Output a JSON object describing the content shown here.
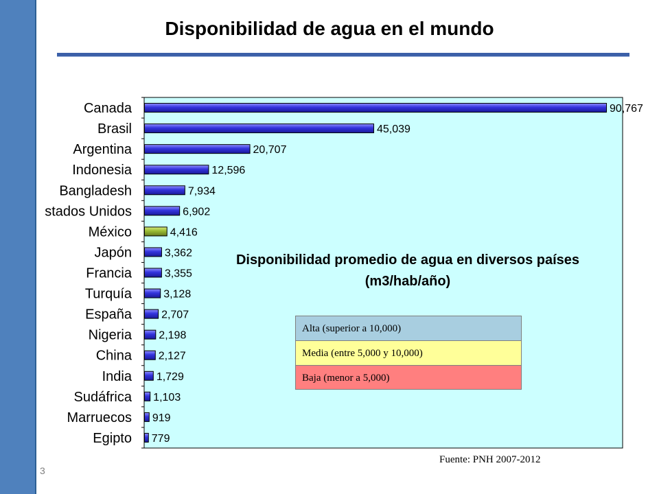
{
  "slide": {
    "title": "Disponibilidad de agua en el mundo",
    "page_number": "3",
    "source": "Fuente: PNH 2007-2012"
  },
  "legend": {
    "items": [
      {
        "label": "Alta (superior a 10,000)",
        "color": "#a8cee0"
      },
      {
        "label": "Media (entre 5,000  y 10,000)",
        "color": "#ffff99"
      },
      {
        "label": "Baja (menor a 5,000)",
        "color": "#ff7f7f"
      }
    ]
  },
  "chart_data": {
    "type": "bar",
    "orientation": "horizontal",
    "title": "Disponibilidad promedio de agua en diversos países",
    "subtitle": "(m3/hab/año)",
    "categories": [
      "Canada",
      "Brasil",
      "Argentina",
      "Indonesia",
      "Bangladesh",
      "stados Unidos",
      "México",
      "Japón",
      "Francia",
      "Turquía",
      "España",
      "Nigeria",
      "China",
      "India",
      "Sudáfrica",
      "Marruecos",
      "Egipto"
    ],
    "values": [
      90767,
      45039,
      20707,
      12596,
      7934,
      6902,
      4416,
      3362,
      3355,
      3128,
      2707,
      2198,
      2127,
      1729,
      1103,
      919,
      779
    ],
    "value_labels": [
      "90,767",
      "45,039",
      "20,707",
      "12,596",
      "7,934",
      "6,902",
      "4,416",
      "3,362",
      "3,355",
      "3,128",
      "2,707",
      "2,198",
      "2,127",
      "1,729",
      "1,103",
      "919",
      "779"
    ],
    "highlight_category": "México",
    "bar_color": "#3333dd",
    "highlight_color": "#99bb33",
    "plot_background": "#ccffff",
    "xlim": [
      0,
      94000
    ],
    "grid": false
  }
}
